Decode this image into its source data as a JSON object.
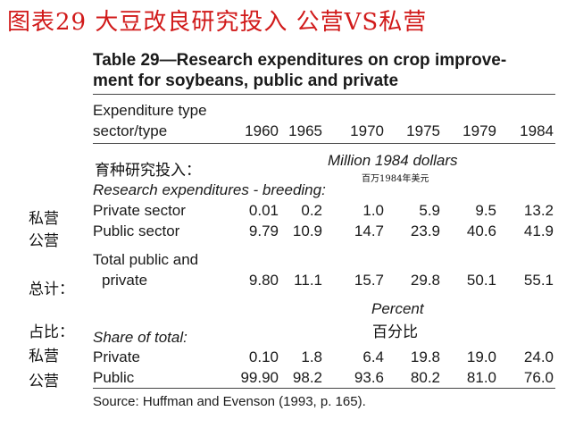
{
  "cn_title": "图表29  大豆改良研究投入 公营VS私营",
  "table": {
    "title_line1": "Table 29—Research expenditures on crop improve-",
    "title_line2": "ment for soybeans, public and private",
    "header_label_line1": "Expenditure type",
    "header_label_line2": "sector/type",
    "years": [
      "1960",
      "1965",
      "1970",
      "1975",
      "1979",
      "1984"
    ],
    "unit_1": "Million 1984 dollars",
    "unit_1_cn": "百万1984年美元",
    "section_1_cn": "育种研究投入：",
    "section_1": "Research expenditures - breeding:",
    "rows_1": [
      {
        "cn": "私营",
        "label": "Private sector",
        "values": [
          "0.01",
          "0.2",
          "1.0",
          "5.9",
          "9.5",
          "13.2"
        ]
      },
      {
        "cn": "公营",
        "label": "Public sector",
        "values": [
          "9.79",
          "10.9",
          "14.7",
          "23.9",
          "40.6",
          "41.9"
        ]
      }
    ],
    "total": {
      "cn": "总计：",
      "label_line1": "Total public and",
      "label_line2": "private",
      "values": [
        "9.80",
        "11.1",
        "15.7",
        "29.8",
        "50.1",
        "55.1"
      ]
    },
    "unit_2": "Percent",
    "unit_2_cn": "百分比",
    "section_2_cn": "占比：",
    "section_2": "Share of total:",
    "rows_2": [
      {
        "cn": "私营",
        "label": "Private",
        "values": [
          "0.10",
          "1.8",
          "6.4",
          "19.8",
          "19.0",
          "24.0"
        ]
      },
      {
        "cn": "公营",
        "label": "Public",
        "values": [
          "99.90",
          "98.2",
          "93.6",
          "80.2",
          "81.0",
          "76.0"
        ]
      }
    ],
    "source": "Source: Huffman and Evenson (1993, p. 165)."
  }
}
